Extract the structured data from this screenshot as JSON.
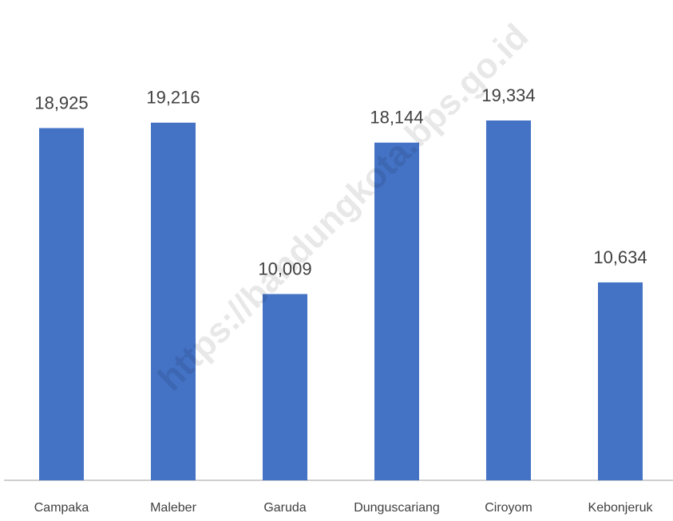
{
  "chart_data": {
    "type": "bar",
    "categories": [
      "Campaka",
      "Maleber",
      "Garuda",
      "Dunguscariang",
      "Ciroyom",
      "Kebonjeruk"
    ],
    "values": [
      18925,
      19216,
      10009,
      18144,
      19334,
      10634
    ],
    "value_labels": [
      "18,925",
      "19,216",
      "10,009",
      "18,144",
      "19,334",
      "10,634"
    ],
    "color": "#4472c4",
    "annotation": "https://bandungkota.bps.go.id"
  }
}
